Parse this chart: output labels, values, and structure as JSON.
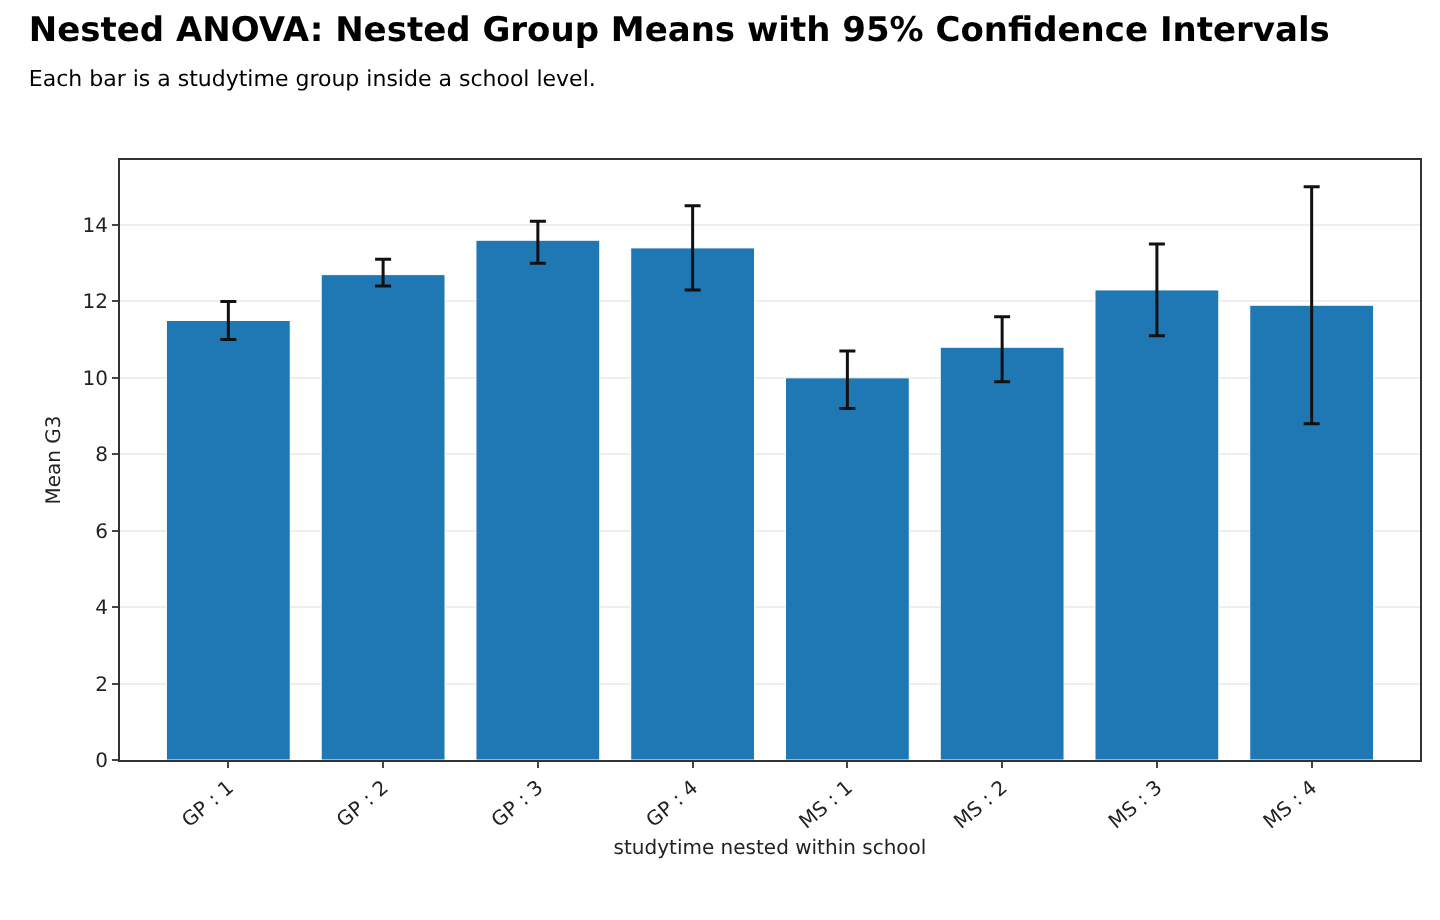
{
  "chart_data": {
    "type": "bar",
    "title": "Nested ANOVA: Nested Group Means with 95% Confidence Intervals",
    "subtitle": "Each bar is a studytime group inside a school level.",
    "xlabel": "studytime nested within school",
    "ylabel": "Mean G3",
    "categories": [
      "GP : 1",
      "GP : 2",
      "GP : 3",
      "GP : 4",
      "MS : 1",
      "MS : 2",
      "MS : 3",
      "MS : 4"
    ],
    "values": [
      11.5,
      12.7,
      13.6,
      13.4,
      10.0,
      10.8,
      12.3,
      11.9
    ],
    "errors": [
      [
        11.0,
        12.0
      ],
      [
        12.4,
        13.1
      ],
      [
        13.0,
        14.1
      ],
      [
        12.3,
        14.5
      ],
      [
        9.2,
        10.7
      ],
      [
        9.9,
        11.6
      ],
      [
        11.1,
        13.5
      ],
      [
        8.8,
        15.0
      ]
    ],
    "color": "#1f77b4",
    "ylim": [
      0,
      15.7
    ],
    "yticks": [
      0,
      2,
      4,
      6,
      8,
      10,
      12,
      14
    ],
    "grid": "y"
  }
}
